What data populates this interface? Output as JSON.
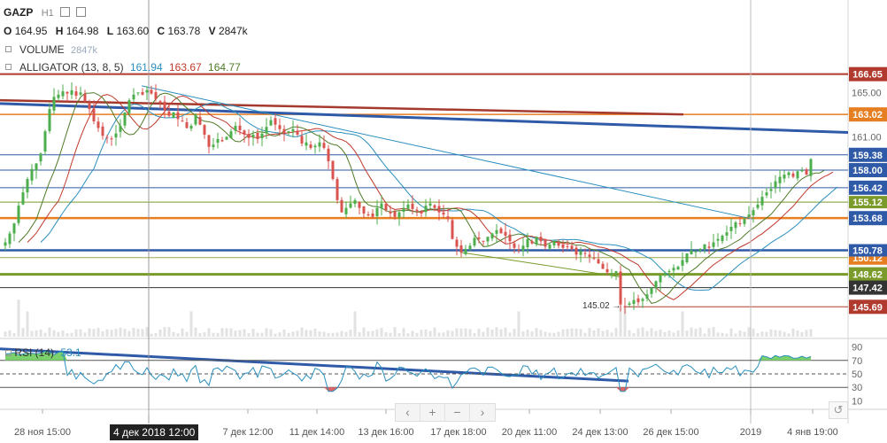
{
  "header": {
    "symbol": "GAZP",
    "interval": "H1",
    "ohlc": [
      {
        "k": "O",
        "v": "164.95"
      },
      {
        "k": "H",
        "v": "164.98"
      },
      {
        "k": "L",
        "v": "163.60"
      },
      {
        "k": "C",
        "v": "163.78"
      },
      {
        "k": "V",
        "v": "2847k"
      }
    ],
    "volume_label": "VOLUME",
    "volume_value": "2847k",
    "alligator_label": "ALLIGATOR (13, 8, 5)",
    "alligator_values": [
      "161.94",
      "163.67",
      "164.77"
    ],
    "alligator_colors": [
      "#2a8fbd",
      "#c0392b",
      "#4f7a28"
    ],
    "icons": [
      "eye-icon",
      "settings-icon",
      "close-icon"
    ]
  },
  "rsi": {
    "label": "RSI (14)",
    "value": "53.1",
    "ticks": [
      "90",
      "70",
      "50",
      "30",
      "10"
    ]
  },
  "nav": {
    "buttons": [
      "‹",
      "+",
      "−",
      "›"
    ],
    "reset_icon": "reset-icon"
  },
  "cursor_date": "4 дек 2018 12:00",
  "low_annotation": "145.02 →",
  "chart_data": {
    "type": "candlestick",
    "y_axis_ticks": [
      165.0,
      161.0
    ],
    "y_range": [
      143.0,
      168.3
    ],
    "x_ticks": [
      "28 ноя 15:00",
      "4 дек 2018 12:00",
      "7 дек 12:00",
      "11 дек 14:00",
      "13 дек 16:00",
      "17 дек 18:00",
      "20 дек 11:00",
      "24 дек 13:00",
      "26 дек 15:00",
      "2019",
      "4 янв 19:00"
    ],
    "price_labels": [
      {
        "value": "166.65",
        "color": "#b03a2e"
      },
      {
        "value": "163.02",
        "color": "#e67e22"
      },
      {
        "value": "159.38",
        "color": "#2f5aa8"
      },
      {
        "value": "158.00",
        "color": "#2f5aa8"
      },
      {
        "value": "156.42",
        "color": "#2f5aa8"
      },
      {
        "value": "153.68",
        "color": "#2f5aa8"
      },
      {
        "value": "150.12",
        "color": "#e67e22"
      },
      {
        "value": "148.62",
        "color": "#7a9a2a"
      },
      {
        "value": "147.42",
        "color": "#333333"
      },
      {
        "value": "145.69",
        "color": "#b03a2e"
      }
    ],
    "hidden_tags": [
      "155.12",
      "150.78"
    ],
    "closes": [
      151.5,
      152.3,
      153.2,
      154.8,
      156.0,
      157.2,
      158.1,
      158.6,
      159.5,
      161.5,
      163.5,
      164.6,
      164.8,
      165.1,
      164.9,
      165.2,
      164.7,
      165.0,
      164.2,
      163.5,
      162.4,
      161.8,
      161.1,
      161.0,
      160.8,
      161.3,
      162.0,
      163.2,
      164.3,
      164.8,
      165.0,
      164.8,
      165.2,
      164.9,
      164.4,
      164.1,
      163.4,
      162.9,
      163.2,
      162.6,
      162.4,
      161.8,
      162.0,
      163.0,
      162.1,
      161.2,
      160.1,
      160.3,
      160.8,
      160.6,
      161.0,
      161.5,
      162.0,
      161.6,
      161.2,
      160.9,
      161.2,
      160.8,
      161.3,
      161.9,
      162.5,
      162.1,
      161.7,
      161.3,
      161.5,
      161.7,
      161.2,
      160.4,
      160.5,
      160.0,
      160.2,
      160.5,
      160.0,
      158.8,
      157.2,
      155.3,
      154.2,
      154.6,
      155.0,
      155.3,
      154.6,
      154.1,
      154.0,
      153.8,
      154.6,
      155.0,
      154.4,
      154.1,
      153.8,
      154.2,
      154.6,
      154.9,
      154.5,
      154.3,
      154.1,
      154.8,
      155.0,
      154.6,
      154.2,
      154.0,
      153.6,
      151.8,
      151.1,
      150.6,
      150.9,
      151.2,
      151.9,
      151.8,
      151.6,
      152.0,
      152.3,
      152.6,
      152.3,
      152.1,
      151.6,
      151.0,
      150.8,
      151.2,
      151.8,
      151.4,
      152.0,
      151.6,
      151.1,
      151.3,
      151.6,
      151.2,
      151.0,
      151.1,
      150.9,
      150.4,
      150.7,
      150.5,
      150.2,
      150.0,
      149.6,
      149.1,
      148.8,
      148.7,
      148.9,
      145.9,
      145.7,
      146.0,
      146.3,
      146.1,
      146.4,
      146.8,
      147.4,
      148.0,
      148.5,
      148.7,
      148.9,
      149.2,
      149.3,
      149.9,
      150.5,
      150.8,
      150.7,
      150.9,
      151.3,
      151.0,
      151.5,
      151.8,
      152.1,
      152.4,
      152.9,
      153.3,
      153.2,
      153.6,
      154.0,
      154.4,
      154.9,
      155.6,
      156.0,
      156.3,
      157.0,
      157.4,
      157.6,
      157.8,
      157.4,
      157.9,
      158.0,
      157.6,
      159.0
    ]
  }
}
